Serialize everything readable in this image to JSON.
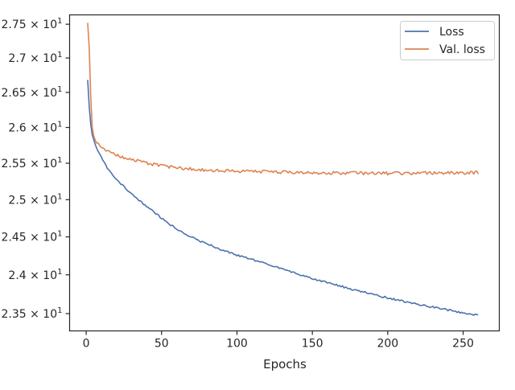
{
  "chart_data": {
    "type": "line",
    "title": "",
    "xlabel": "Epochs",
    "ylabel": "",
    "y_scale": "log",
    "grid": false,
    "legend_position": "top-right",
    "xlim": [
      -11,
      274
    ],
    "ylim": [
      23.28,
      27.64
    ],
    "x_ticks": [
      0,
      50,
      100,
      150,
      200,
      250
    ],
    "x_tick_labels": [
      "0",
      "50",
      "100",
      "150",
      "200",
      "250"
    ],
    "y_ticks": [
      23.5,
      24.0,
      24.5,
      25.0,
      25.5,
      26.0,
      26.5,
      27.0,
      27.5
    ],
    "y_tick_mantissas": [
      "2.35",
      "2.4",
      "2.45",
      "2.5",
      "2.55",
      "2.6",
      "2.65",
      "2.7",
      "2.75"
    ],
    "y_tick_base": "10",
    "y_tick_exponent": "1",
    "x_range": [
      1,
      260
    ],
    "series": [
      {
        "name": "Loss",
        "color": "#4c72b0",
        "anchors": [
          [
            1,
            26.68
          ],
          [
            2,
            26.3
          ],
          [
            3,
            26.05
          ],
          [
            4,
            25.9
          ],
          [
            6,
            25.76
          ],
          [
            10,
            25.58
          ],
          [
            15,
            25.4
          ],
          [
            20,
            25.28
          ],
          [
            30,
            25.08
          ],
          [
            40,
            24.91
          ],
          [
            50,
            24.75
          ],
          [
            60,
            24.6
          ],
          [
            75,
            24.45
          ],
          [
            90,
            24.33
          ],
          [
            100,
            24.26
          ],
          [
            125,
            24.11
          ],
          [
            150,
            23.95
          ],
          [
            175,
            23.82
          ],
          [
            200,
            23.7
          ],
          [
            225,
            23.6
          ],
          [
            250,
            23.51
          ],
          [
            260,
            23.48
          ]
        ],
        "noise": 0.012
      },
      {
        "name": "Val. loss",
        "color": "#dd8452",
        "anchors": [
          [
            1,
            27.52
          ],
          [
            2,
            27.15
          ],
          [
            3,
            26.45
          ],
          [
            4,
            26.0
          ],
          [
            5,
            25.88
          ],
          [
            6,
            25.82
          ],
          [
            8,
            25.76
          ],
          [
            10,
            25.72
          ],
          [
            15,
            25.66
          ],
          [
            20,
            25.61
          ],
          [
            30,
            25.55
          ],
          [
            50,
            25.46
          ],
          [
            75,
            25.41
          ],
          [
            100,
            25.39
          ],
          [
            150,
            25.37
          ],
          [
            200,
            25.36
          ],
          [
            260,
            25.37
          ]
        ],
        "noise": 0.022
      }
    ]
  }
}
